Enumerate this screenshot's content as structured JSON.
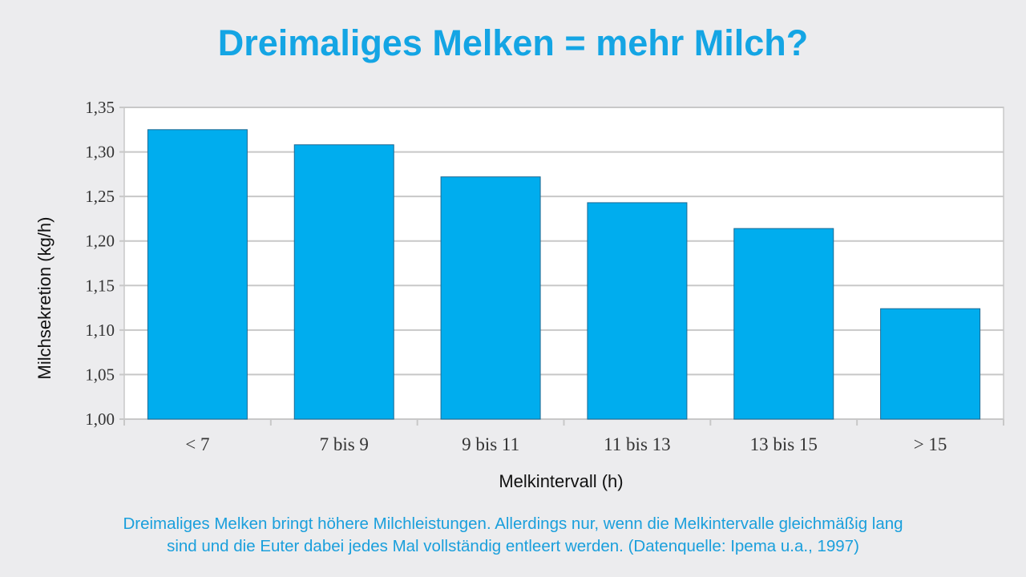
{
  "chart_data": {
    "type": "bar",
    "title": "Dreimaliges Melken = mehr Milch?",
    "xlabel": "Melkintervall (h)",
    "ylabel": "Milchsekretion (kg/h)",
    "categories": [
      "< 7",
      "7 bis 9",
      "9 bis 11",
      "11 bis 13",
      "13 bis 15",
      "> 15"
    ],
    "values": [
      1.325,
      1.308,
      1.272,
      1.243,
      1.214,
      1.124
    ],
    "ylim": [
      1.0,
      1.35
    ],
    "yticks": [
      "1,00",
      "1,05",
      "1,10",
      "1,15",
      "1,20",
      "1,25",
      "1,30",
      "1,35"
    ],
    "ytick_values": [
      1.0,
      1.05,
      1.1,
      1.15,
      1.2,
      1.25,
      1.3,
      1.35
    ],
    "grid": true,
    "bar_color": "#00adee",
    "bar_stroke": "#1d6a94",
    "gridline_color": "#c8c8c8",
    "plot_background": "#ffffff"
  },
  "caption": {
    "line1": "Dreimaliges Melken bringt höhere Milchleistungen. Allerdings nur, wenn die Melkintervalle gleichmäßig lang",
    "line2": "sind und die Euter dabei jedes Mal vollständig entleert werden. (Datenquelle: Ipema u.a., 1997)"
  },
  "colors": {
    "title": "#14a5e4",
    "caption": "#1a9fdc",
    "page_background": "#ececee"
  }
}
